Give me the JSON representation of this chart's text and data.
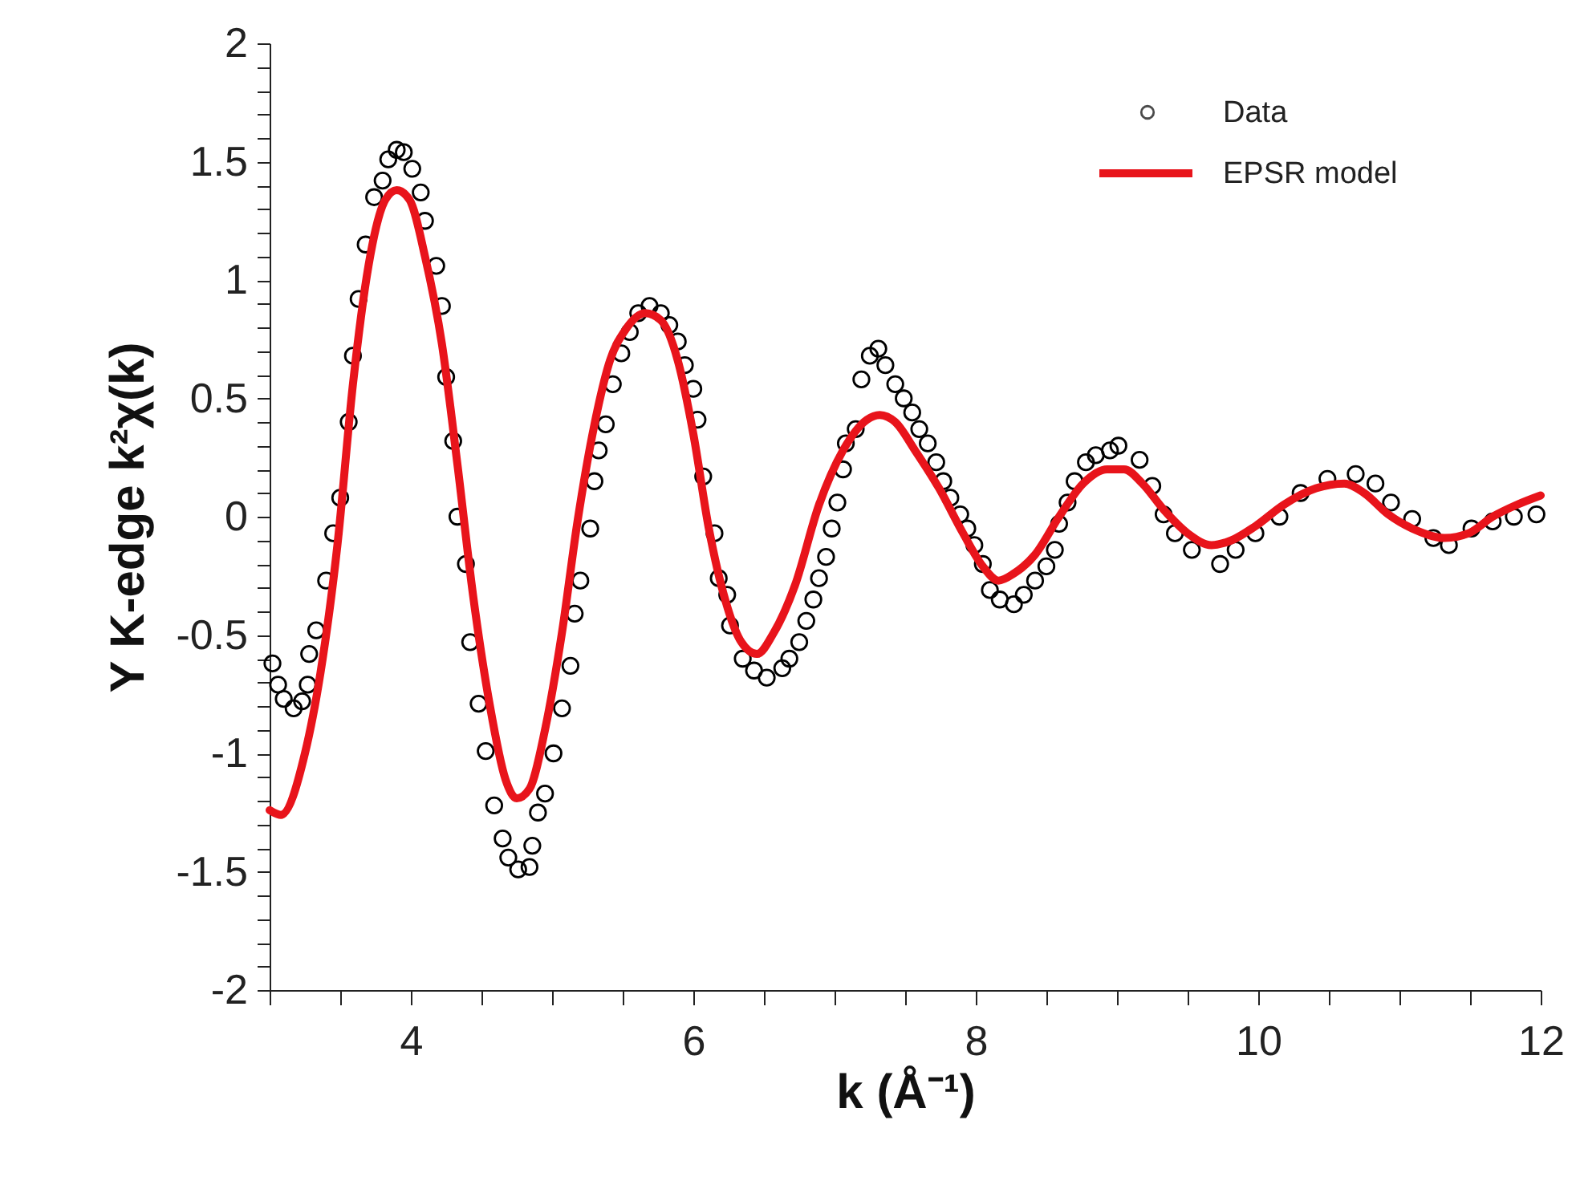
{
  "chart_data": {
    "type": "line",
    "xlabel": "k (Å⁻¹)",
    "ylabel": "Y K-edge k²χ(k)",
    "xlim": [
      3,
      12
    ],
    "xticks": [
      {
        "value": 3,
        "label": null
      },
      {
        "value": 3.5,
        "label": null
      },
      4,
      {
        "value": 4.5,
        "label": null
      },
      {
        "value": 5,
        "label": null
      },
      {
        "value": 5.5,
        "label": null
      },
      6,
      {
        "value": 6.5,
        "label": null
      },
      {
        "value": 7,
        "label": null
      },
      {
        "value": 7.5,
        "label": null
      },
      8,
      {
        "value": 8.5,
        "label": null
      },
      {
        "value": 9,
        "label": null
      },
      {
        "value": 9.5,
        "label": null
      },
      10,
      {
        "value": 10.5,
        "label": null
      },
      {
        "value": 11,
        "label": null
      },
      {
        "value": 11.5,
        "label": null
      },
      12
    ],
    "ylim": [
      -2,
      2
    ],
    "yticks": [
      -2,
      {
        "value": -1.9,
        "label": null
      },
      {
        "value": -1.8,
        "label": null
      },
      {
        "value": -1.7,
        "label": null
      },
      {
        "value": -1.6,
        "label": null
      },
      -1.5,
      {
        "value": -1.4,
        "label": null
      },
      {
        "value": -1.3,
        "label": null
      },
      {
        "value": -1.2,
        "label": null
      },
      {
        "value": -1.1,
        "label": null
      },
      -1,
      {
        "value": -0.9,
        "label": null
      },
      {
        "value": -0.8,
        "label": null
      },
      {
        "value": -0.7,
        "label": null
      },
      {
        "value": -0.6,
        "label": null
      },
      -0.5,
      {
        "value": -0.4,
        "label": null
      },
      {
        "value": -0.3,
        "label": null
      },
      {
        "value": -0.2,
        "label": null
      },
      {
        "value": -0.1,
        "label": null
      },
      0,
      {
        "value": 0.1,
        "label": null
      },
      {
        "value": 0.2,
        "label": null
      },
      {
        "value": 0.3,
        "label": null
      },
      {
        "value": 0.4,
        "label": null
      },
      0.5,
      {
        "value": 0.6,
        "label": null
      },
      {
        "value": 0.7,
        "label": null
      },
      {
        "value": 0.8,
        "label": null
      },
      {
        "value": 0.9,
        "label": null
      },
      1,
      {
        "value": 1.1,
        "label": null
      },
      {
        "value": 1.2,
        "label": null
      },
      {
        "value": 1.3,
        "label": null
      },
      {
        "value": 1.4,
        "label": null
      },
      1.5,
      {
        "value": 1.6,
        "label": null
      },
      {
        "value": 1.7,
        "label": null
      },
      {
        "value": 1.8,
        "label": null
      },
      {
        "value": 1.9,
        "label": null
      },
      2
    ],
    "grid": false,
    "legend": "top right",
    "series": [
      {
        "name": "Data",
        "type": "scatter",
        "marker": "circle",
        "color": "#000000",
        "x": [
          3.02,
          3.06,
          3.1,
          3.17,
          3.23,
          3.27,
          3.28,
          3.33,
          3.4,
          3.45,
          3.5,
          3.56,
          3.59,
          3.63,
          3.68,
          3.74,
          3.8,
          3.84,
          3.9,
          3.95,
          4.01,
          4.07,
          4.1,
          4.18,
          4.22,
          4.25,
          4.3,
          4.33,
          4.39,
          4.42,
          4.48,
          4.53,
          4.59,
          4.65,
          4.69,
          4.76,
          4.84,
          4.86,
          4.9,
          4.95,
          5.01,
          5.07,
          5.13,
          5.16,
          5.2,
          5.27,
          5.3,
          5.33,
          5.38,
          5.43,
          5.49,
          5.55,
          5.61,
          5.69,
          5.77,
          5.83,
          5.89,
          5.94,
          6.0,
          6.03,
          6.07,
          6.15,
          6.18,
          6.24,
          6.26,
          6.35,
          6.43,
          6.52,
          6.63,
          6.68,
          6.75,
          6.8,
          6.85,
          6.89,
          6.94,
          6.98,
          7.02,
          7.06,
          7.08,
          7.15,
          7.19,
          7.25,
          7.31,
          7.36,
          7.43,
          7.49,
          7.55,
          7.6,
          7.66,
          7.72,
          7.77,
          7.82,
          7.89,
          7.94,
          7.99,
          8.05,
          8.1,
          8.17,
          8.27,
          8.34,
          8.42,
          8.5,
          8.56,
          8.59,
          8.65,
          8.7,
          8.78,
          8.85,
          8.95,
          9.01,
          9.16,
          9.25,
          9.33,
          9.41,
          9.53,
          9.73,
          9.84,
          9.98,
          10.15,
          10.3,
          10.49,
          10.69,
          10.83,
          10.94,
          11.09,
          11.24,
          11.35,
          11.51,
          11.66,
          11.81,
          11.97
        ],
        "values": [
          -0.62,
          -0.71,
          -0.77,
          -0.81,
          -0.78,
          -0.71,
          -0.58,
          -0.48,
          -0.27,
          -0.07,
          0.08,
          0.4,
          0.68,
          0.92,
          1.15,
          1.35,
          1.42,
          1.51,
          1.55,
          1.54,
          1.47,
          1.37,
          1.25,
          1.06,
          0.89,
          0.59,
          0.32,
          0.0,
          -0.2,
          -0.53,
          -0.79,
          -0.99,
          -1.22,
          -1.36,
          -1.44,
          -1.49,
          -1.48,
          -1.39,
          -1.25,
          -1.17,
          -1.0,
          -0.81,
          -0.63,
          -0.41,
          -0.27,
          -0.05,
          0.15,
          0.28,
          0.39,
          0.56,
          0.69,
          0.78,
          0.86,
          0.89,
          0.86,
          0.81,
          0.74,
          0.64,
          0.54,
          0.41,
          0.17,
          -0.07,
          -0.26,
          -0.33,
          -0.46,
          -0.6,
          -0.65,
          -0.68,
          -0.64,
          -0.6,
          -0.53,
          -0.44,
          -0.35,
          -0.26,
          -0.17,
          -0.05,
          0.06,
          0.2,
          0.31,
          0.37,
          0.58,
          0.68,
          0.71,
          0.64,
          0.56,
          0.5,
          0.44,
          0.37,
          0.31,
          0.23,
          0.15,
          0.08,
          0.01,
          -0.05,
          -0.12,
          -0.2,
          -0.31,
          -0.35,
          -0.37,
          -0.33,
          -0.27,
          -0.21,
          -0.14,
          -0.03,
          0.06,
          0.15,
          0.23,
          0.26,
          0.28,
          0.3,
          0.24,
          0.13,
          0.01,
          -0.07,
          -0.14,
          -0.2,
          -0.14,
          -0.07,
          0.0,
          0.1,
          0.16,
          0.18,
          0.14,
          0.06,
          -0.01,
          -0.09,
          -0.12,
          -0.05,
          -0.02,
          0.0,
          0.01
        ]
      },
      {
        "name": "EPSR model",
        "type": "line",
        "marker": "none",
        "line_style": "solid",
        "color": "#e8141b",
        "x": [
          3.0,
          3.08,
          3.25,
          3.36,
          3.48,
          3.59,
          3.7,
          3.82,
          3.9,
          3.99,
          4.1,
          4.22,
          4.33,
          4.44,
          4.56,
          4.67,
          4.75,
          4.84,
          4.95,
          5.07,
          5.18,
          5.3,
          5.41,
          5.52,
          5.66,
          5.77,
          5.89,
          6.0,
          6.11,
          6.23,
          6.34,
          6.45,
          6.57,
          6.72,
          6.89,
          7.06,
          7.23,
          7.32,
          7.43,
          7.57,
          7.74,
          7.91,
          8.05,
          8.16,
          8.27,
          8.42,
          8.59,
          8.76,
          8.93,
          9.05,
          9.18,
          9.33,
          9.5,
          9.67,
          9.81,
          9.98,
          10.18,
          10.41,
          10.61,
          10.75,
          10.92,
          11.09,
          11.32,
          11.49,
          11.66,
          11.83,
          12.0
        ],
        "values": [
          -1.24,
          -1.26,
          -1.0,
          -0.66,
          -0.12,
          0.56,
          1.06,
          1.34,
          1.38,
          1.34,
          1.1,
          0.73,
          0.22,
          -0.33,
          -0.8,
          -1.11,
          -1.19,
          -1.15,
          -0.9,
          -0.49,
          -0.02,
          0.39,
          0.66,
          0.79,
          0.86,
          0.83,
          0.66,
          0.35,
          -0.05,
          -0.36,
          -0.53,
          -0.58,
          -0.49,
          -0.29,
          0.05,
          0.28,
          0.41,
          0.43,
          0.4,
          0.28,
          0.12,
          -0.07,
          -0.21,
          -0.27,
          -0.24,
          -0.16,
          0.0,
          0.14,
          0.2,
          0.2,
          0.14,
          0.03,
          -0.07,
          -0.12,
          -0.1,
          -0.04,
          0.05,
          0.12,
          0.14,
          0.1,
          0.01,
          -0.05,
          -0.09,
          -0.07,
          0.0,
          0.05,
          0.09
        ]
      }
    ]
  }
}
